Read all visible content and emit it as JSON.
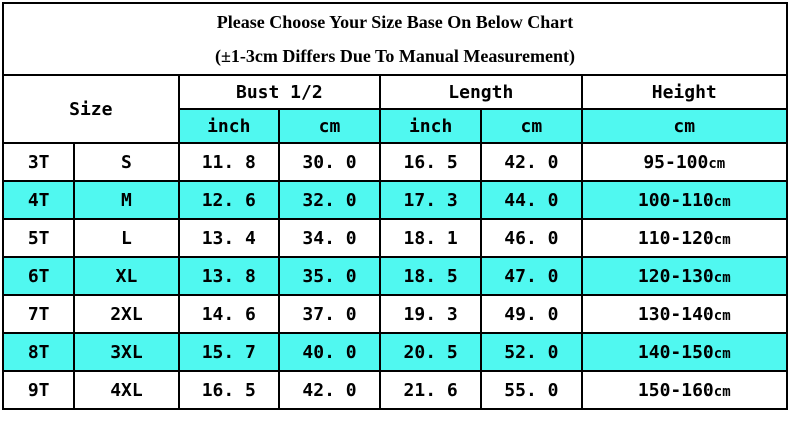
{
  "title": {
    "line1": "Please Choose Your Size Base On Below Chart",
    "line2": "(±1-3cm Differs Due To Manual Measurement)"
  },
  "table": {
    "header": {
      "size_label": "Size",
      "groups": [
        {
          "label": "Bust 1/2",
          "sub": [
            "inch",
            "cm"
          ]
        },
        {
          "label": "Length",
          "sub": [
            "inch",
            "cm"
          ]
        },
        {
          "label": "Height",
          "sub": [
            "cm"
          ]
        }
      ]
    },
    "rows": [
      {
        "t": "3T",
        "size": "S",
        "bust_inch": "11. 8",
        "bust_cm": "30. 0",
        "length_inch": "16. 5",
        "length_cm": "42. 0",
        "height_range": "95-100",
        "height_unit": "cm",
        "highlight": false
      },
      {
        "t": "4T",
        "size": "M",
        "bust_inch": "12. 6",
        "bust_cm": "32. 0",
        "length_inch": "17. 3",
        "length_cm": "44. 0",
        "height_range": "100-110",
        "height_unit": "cm",
        "highlight": true
      },
      {
        "t": "5T",
        "size": "L",
        "bust_inch": "13. 4",
        "bust_cm": "34. 0",
        "length_inch": "18. 1",
        "length_cm": "46. 0",
        "height_range": "110-120",
        "height_unit": "cm",
        "highlight": false
      },
      {
        "t": "6T",
        "size": "XL",
        "bust_inch": "13. 8",
        "bust_cm": "35. 0",
        "length_inch": "18. 5",
        "length_cm": "47. 0",
        "height_range": "120-130",
        "height_unit": "cm",
        "highlight": true
      },
      {
        "t": "7T",
        "size": "2XL",
        "bust_inch": "14. 6",
        "bust_cm": "37. 0",
        "length_inch": "19. 3",
        "length_cm": "49. 0",
        "height_range": "130-140",
        "height_unit": "cm",
        "highlight": false
      },
      {
        "t": "8T",
        "size": "3XL",
        "bust_inch": "15. 7",
        "bust_cm": "40. 0",
        "length_inch": "20. 5",
        "length_cm": "52. 0",
        "height_range": "140-150",
        "height_unit": "cm",
        "highlight": true
      },
      {
        "t": "9T",
        "size": "4XL",
        "bust_inch": "16. 5",
        "bust_cm": "42. 0",
        "length_inch": "21. 6",
        "length_cm": "55. 0",
        "height_range": "150-160",
        "height_unit": "cm",
        "highlight": false
      }
    ]
  },
  "colors": {
    "highlight_cyan": "#50F8F0",
    "border": "#000000",
    "background": "#FFFFFF",
    "text": "#000000"
  },
  "chart_data": {
    "type": "table",
    "title": "Please Choose Your Size Base On Below Chart (±1-3cm Differs Due To Manual Measurement)",
    "columns": [
      "Size (age)",
      "Size (letter)",
      "Bust 1/2 inch",
      "Bust 1/2 cm",
      "Length inch",
      "Length cm",
      "Height cm"
    ],
    "rows": [
      [
        "3T",
        "S",
        11.8,
        30.0,
        16.5,
        42.0,
        "95-100cm"
      ],
      [
        "4T",
        "M",
        12.6,
        32.0,
        17.3,
        44.0,
        "100-110cm"
      ],
      [
        "5T",
        "L",
        13.4,
        34.0,
        18.1,
        46.0,
        "110-120cm"
      ],
      [
        "6T",
        "XL",
        13.8,
        35.0,
        18.5,
        47.0,
        "120-130cm"
      ],
      [
        "7T",
        "2XL",
        14.6,
        37.0,
        19.3,
        49.0,
        "130-140cm"
      ],
      [
        "8T",
        "3XL",
        15.7,
        40.0,
        20.5,
        52.0,
        "140-150cm"
      ],
      [
        "9T",
        "4XL",
        16.5,
        42.0,
        21.6,
        55.0,
        "150-160cm"
      ]
    ],
    "layout_hints": {
      "highlighted_rows": [
        "4T",
        "6T",
        "8T"
      ],
      "highlight_color": "#50F8F0",
      "grid": true
    }
  }
}
